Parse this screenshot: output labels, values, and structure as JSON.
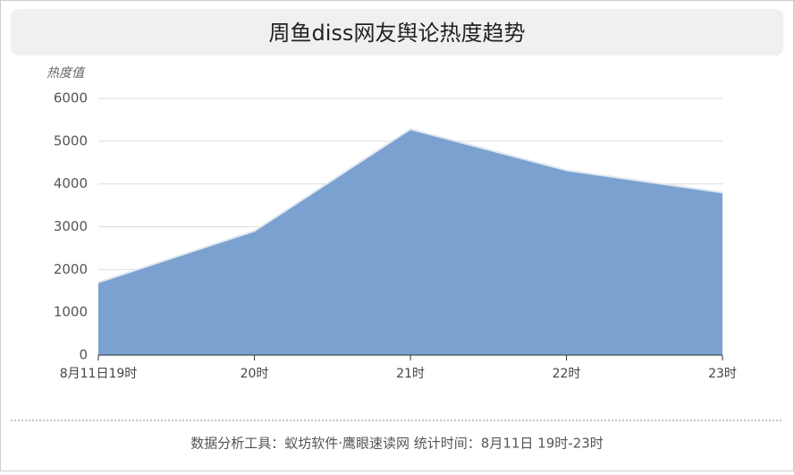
{
  "chart_data": {
    "type": "area",
    "title": "周鱼diss网友舆论热度趋势",
    "y_label": "热度值",
    "categories": [
      "8月11日19时",
      "20时",
      "21时",
      "22时",
      "23时"
    ],
    "values": [
      1700,
      2900,
      5280,
      4320,
      3800
    ],
    "color": "#7aa1cf",
    "ylim": [
      0,
      6000
    ],
    "yticks": [
      0,
      1000,
      2000,
      3000,
      4000,
      5000,
      6000
    ],
    "grid": true,
    "footer": "数据分析工具：蚁坊软件·鹰眼速读网   统计时间：8月11日 19时-23时"
  }
}
